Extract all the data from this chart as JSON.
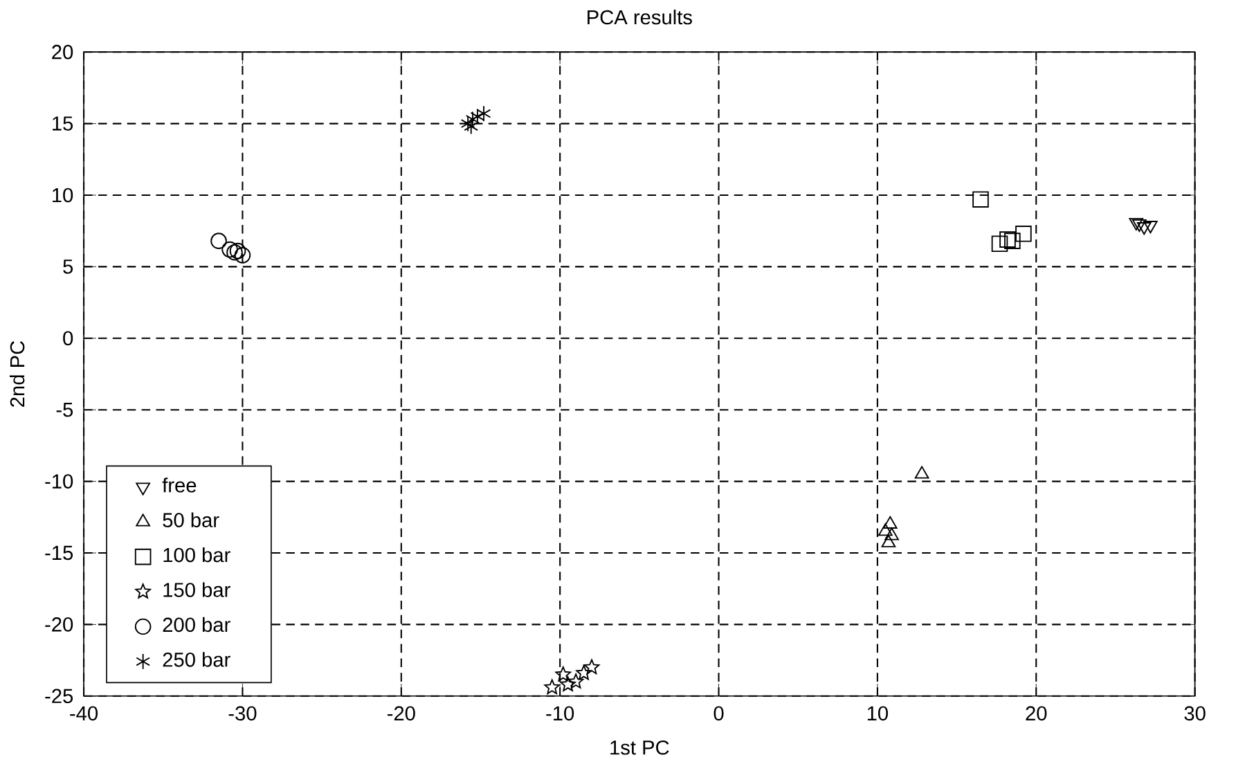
{
  "chart_data": {
    "type": "scatter",
    "title": "PCA results",
    "xlabel": "1st PC",
    "ylabel": "2nd PC",
    "xlim": [
      -40,
      30
    ],
    "ylim": [
      -25,
      20
    ],
    "xticks": [
      -40,
      -30,
      -20,
      -10,
      0,
      10,
      20,
      30
    ],
    "yticks": [
      -25,
      -20,
      -15,
      -10,
      -5,
      0,
      5,
      10,
      15,
      20
    ],
    "grid": true,
    "legend": "bottom left",
    "series": [
      {
        "name": "free",
        "color": "#000000",
        "marker": "triangle-down",
        "x": [
          26.3,
          26.5,
          26.8,
          27.2
        ],
        "values": [
          8.1,
          8.0,
          7.8,
          7.9
        ]
      },
      {
        "name": "50 bar",
        "color": "#000000",
        "marker": "triangle",
        "x": [
          12.8,
          10.8,
          10.5,
          10.7,
          10.9
        ],
        "values": [
          -9.5,
          -13.0,
          -13.5,
          -14.3,
          -13.8
        ]
      },
      {
        "name": "100 bar",
        "color": "#000000",
        "marker": "square",
        "x": [
          16.5,
          17.7,
          18.2,
          18.5,
          19.2
        ],
        "values": [
          9.7,
          6.6,
          6.9,
          6.8,
          7.3
        ]
      },
      {
        "name": "150 bar",
        "color": "#000000",
        "marker": "star",
        "x": [
          -10.5,
          -9.8,
          -9.5,
          -9.0,
          -8.5,
          -8.0
        ],
        "values": [
          -24.4,
          -23.5,
          -24.2,
          -24.0,
          -23.4,
          -23.0
        ]
      },
      {
        "name": "200 bar",
        "color": "#000000",
        "marker": "circle",
        "x": [
          -31.5,
          -30.8,
          -30.5,
          -30.0,
          -30.3
        ],
        "values": [
          6.8,
          6.2,
          6.0,
          5.8,
          6.1
        ]
      },
      {
        "name": "250 bar",
        "color": "#000000",
        "marker": "cross",
        "x": [
          -15.8,
          -15.5,
          -15.2,
          -14.8,
          -15.6
        ],
        "values": [
          15.0,
          15.3,
          15.5,
          15.7,
          14.8
        ]
      }
    ]
  }
}
